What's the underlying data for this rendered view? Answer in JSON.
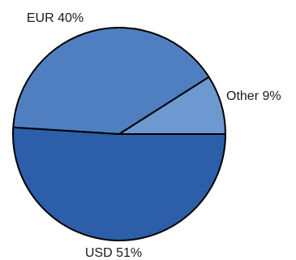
{
  "chart_data": {
    "type": "pie",
    "start_angle_deg": 0,
    "direction": "clockwise",
    "slices": [
      {
        "name": "USD",
        "value": 51,
        "label": "USD 51%",
        "color": "#2c5ea9"
      },
      {
        "name": "EUR",
        "value": 40,
        "label": "EUR 40%",
        "color": "#4f7fc0"
      },
      {
        "name": "Other",
        "value": 9,
        "label": "Other 9%",
        "color": "#6e98d0"
      }
    ]
  }
}
